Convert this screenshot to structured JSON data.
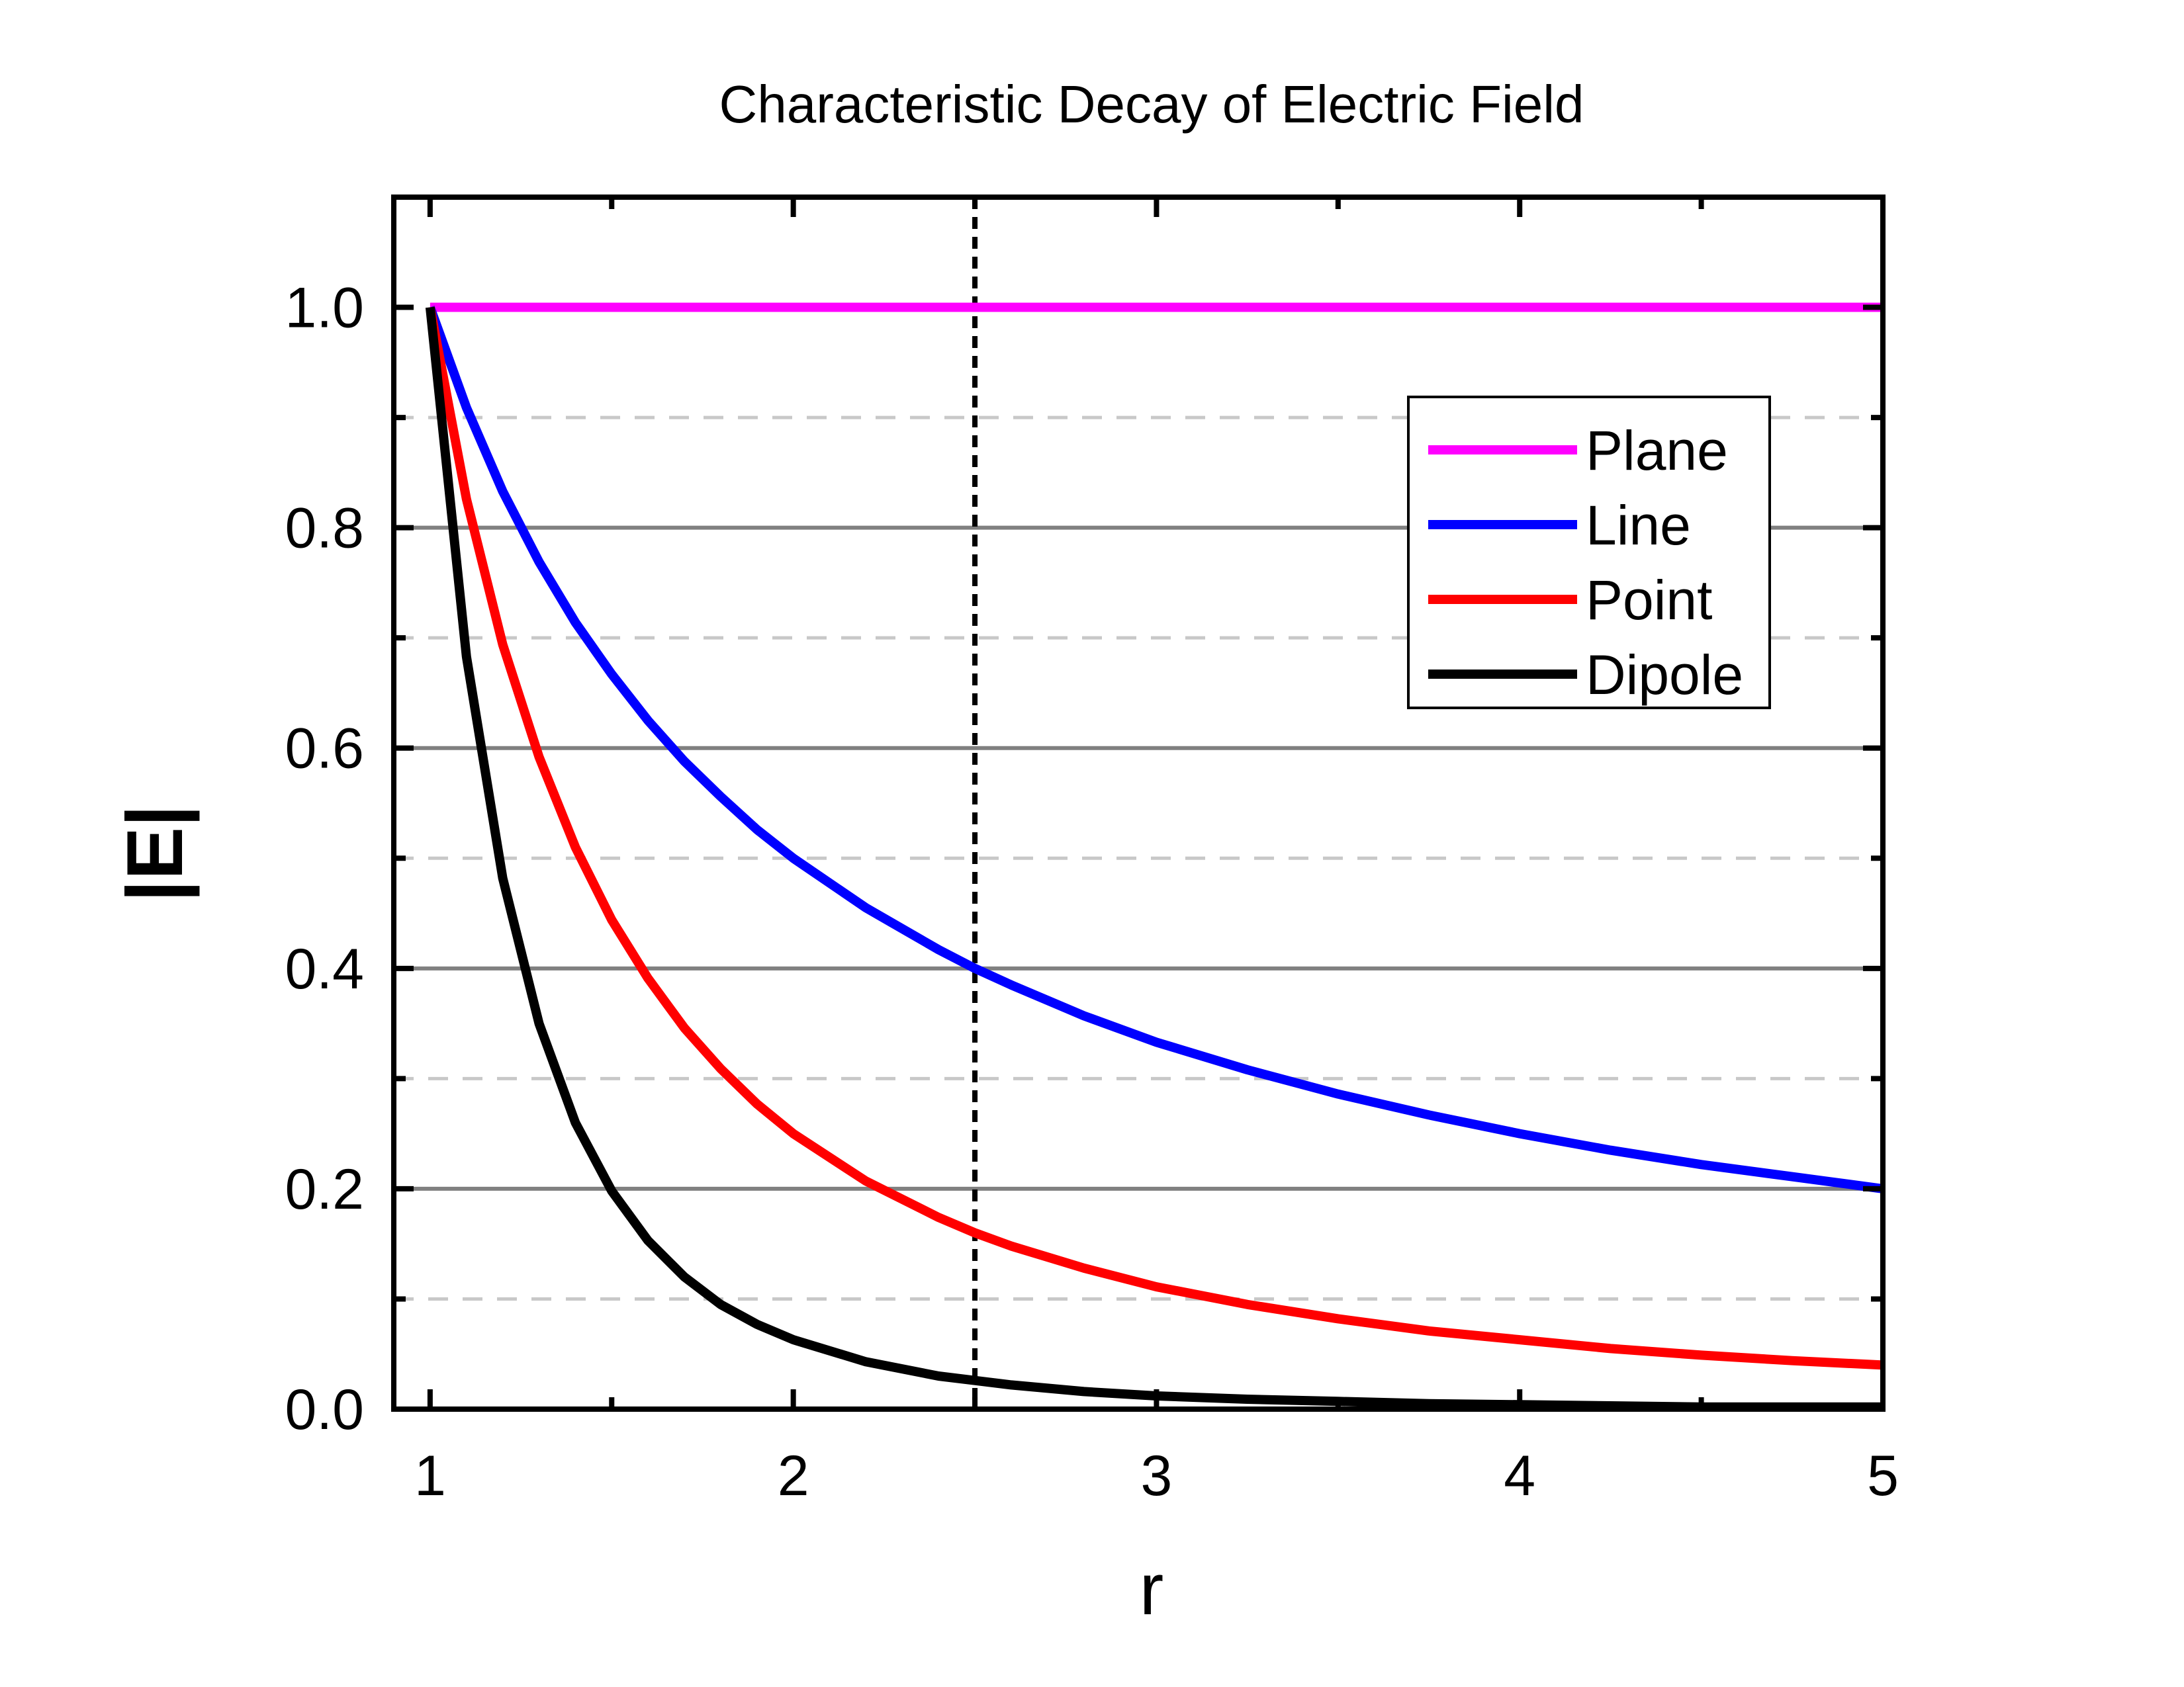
{
  "chart_data": {
    "type": "line",
    "title": "Characteristic Decay of Electric Field",
    "xlabel": "r",
    "ylabel": "|E|",
    "xlim": [
      0.9,
      5
    ],
    "ylim": [
      0,
      1.1
    ],
    "x_ticks": [
      1,
      2,
      3,
      4,
      5
    ],
    "x_tick_labels": [
      "1",
      "2",
      "3",
      "4",
      "5"
    ],
    "y_ticks": [
      0.0,
      0.2,
      0.4,
      0.6,
      0.8,
      1.0
    ],
    "y_tick_labels": [
      "0.0",
      "0.2",
      "0.4",
      "0.6",
      "0.8",
      "1.0"
    ],
    "major_grid": "solid gray at 0.2 intervals",
    "minor_grid": "dashed light gray at 0.1 intervals",
    "reference_line": {
      "x": 2.5,
      "style": "dotted black vertical"
    },
    "legend_position": "top-right",
    "x": [
      1.0,
      1.1,
      1.2,
      1.3,
      1.4,
      1.5,
      1.6,
      1.7,
      1.8,
      1.9,
      2.0,
      2.2,
      2.4,
      2.5,
      2.6,
      2.8,
      3.0,
      3.25,
      3.5,
      3.75,
      4.0,
      4.25,
      4.5,
      4.75,
      5.0
    ],
    "series": [
      {
        "name": "Plane",
        "color": "#ff00ff",
        "values": [
          1,
          1,
          1,
          1,
          1,
          1,
          1,
          1,
          1,
          1,
          1,
          1,
          1,
          1,
          1,
          1,
          1,
          1,
          1,
          1,
          1,
          1,
          1,
          1,
          1
        ]
      },
      {
        "name": "Line",
        "color": "#0000ff",
        "values": [
          1.0,
          0.909,
          0.833,
          0.769,
          0.714,
          0.667,
          0.625,
          0.588,
          0.556,
          0.526,
          0.5,
          0.455,
          0.417,
          0.4,
          0.385,
          0.357,
          0.333,
          0.308,
          0.286,
          0.267,
          0.25,
          0.235,
          0.222,
          0.211,
          0.2
        ]
      },
      {
        "name": "Point",
        "color": "#ff0000",
        "values": [
          1.0,
          0.826,
          0.694,
          0.592,
          0.51,
          0.444,
          0.391,
          0.346,
          0.309,
          0.277,
          0.25,
          0.207,
          0.174,
          0.16,
          0.148,
          0.128,
          0.111,
          0.095,
          0.082,
          0.071,
          0.063,
          0.055,
          0.049,
          0.044,
          0.04
        ]
      },
      {
        "name": "Dipole",
        "color": "#000000",
        "values": [
          1.0,
          0.683,
          0.482,
          0.35,
          0.26,
          0.198,
          0.153,
          0.12,
          0.095,
          0.077,
          0.063,
          0.043,
          0.03,
          0.026,
          0.022,
          0.016,
          0.012,
          0.009,
          0.007,
          0.005,
          0.004,
          0.003,
          0.002,
          0.002,
          0.002
        ]
      }
    ]
  }
}
